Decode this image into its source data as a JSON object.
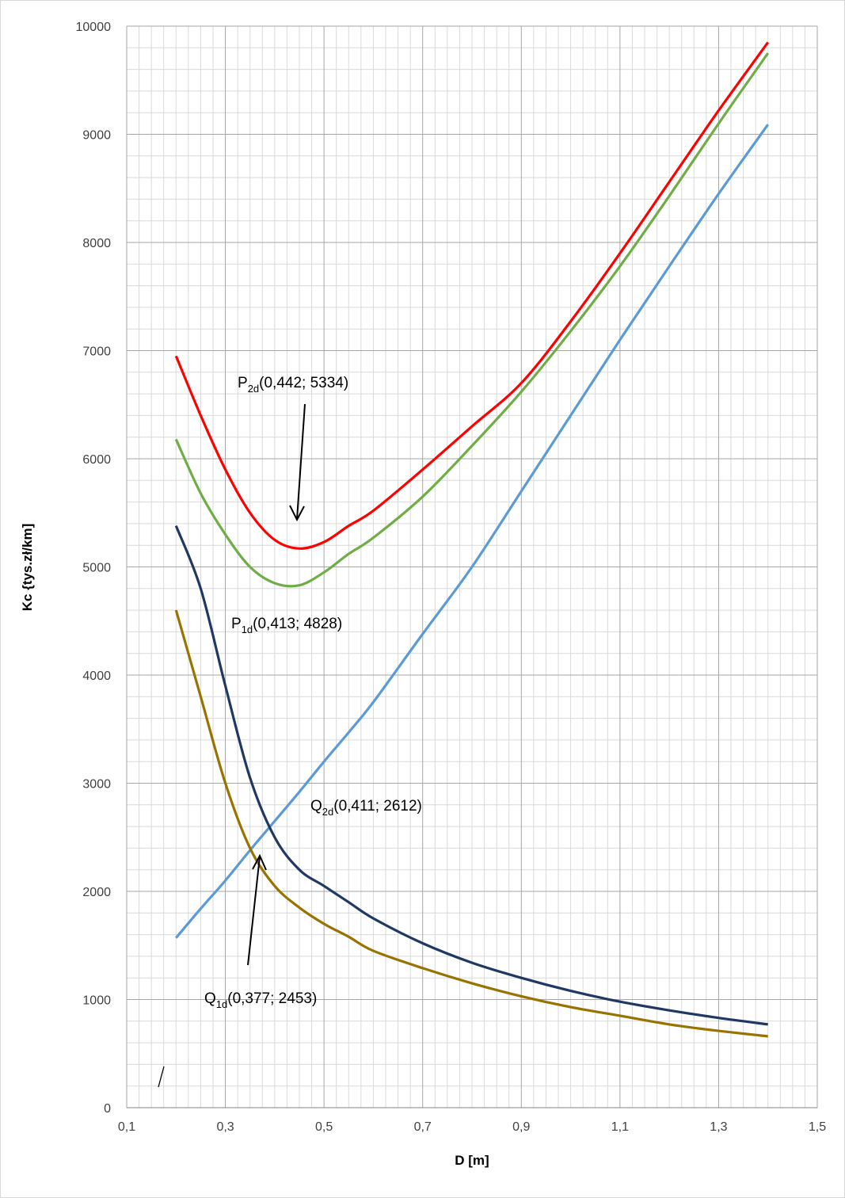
{
  "chart_data": {
    "type": "line",
    "x_label": "D [m]",
    "y_label": "Kc {tys.zł/km]",
    "x": [
      0.2,
      0.25,
      0.3,
      0.35,
      0.4,
      0.45,
      0.5,
      0.55,
      0.6,
      0.7,
      0.8,
      0.9,
      1.0,
      1.1,
      1.2,
      1.3,
      1.4
    ],
    "series": [
      {
        "color": "#ff0000",
        "values": [
          6950,
          6400,
          5900,
          5500,
          5250,
          5170,
          5230,
          5380,
          5520,
          5900,
          6300,
          6700,
          7270,
          7900,
          8560,
          9220,
          9850
        ]
      },
      {
        "color": "#70ad47",
        "values": [
          6180,
          5680,
          5300,
          5000,
          4850,
          4830,
          4950,
          5120,
          5270,
          5650,
          6120,
          6620,
          7180,
          7780,
          8430,
          9100,
          9750
        ]
      },
      {
        "color": "#5b9bd5",
        "values": [
          1570,
          1840,
          2100,
          2380,
          2650,
          2920,
          3200,
          3470,
          3750,
          4380,
          5000,
          5700,
          6400,
          7100,
          7780,
          8450,
          9090
        ]
      },
      {
        "color": "#203864",
        "values": [
          5380,
          4800,
          3900,
          3050,
          2500,
          2200,
          2050,
          1900,
          1750,
          1520,
          1340,
          1200,
          1080,
          980,
          900,
          830,
          770
        ]
      },
      {
        "color": "#997300",
        "values": [
          4600,
          3800,
          3000,
          2400,
          2050,
          1850,
          1700,
          1580,
          1450,
          1290,
          1150,
          1030,
          930,
          850,
          770,
          710,
          660
        ]
      }
    ],
    "xlim": [
      0.1,
      1.5
    ],
    "xticks": [
      {
        "value": 0.1,
        "label": "0,1"
      },
      {
        "value": 0.3,
        "label": "0,3"
      },
      {
        "value": 0.5,
        "label": "0,5"
      },
      {
        "value": 0.7,
        "label": "0,7"
      },
      {
        "value": 0.9,
        "label": "0,9"
      },
      {
        "value": 1.1,
        "label": "1,1"
      },
      {
        "value": 1.3,
        "label": "1,3"
      },
      {
        "value": 1.5,
        "label": "1,5"
      }
    ],
    "ylim": [
      0,
      10000
    ],
    "yticks": [
      0,
      1000,
      2000,
      3000,
      4000,
      5000,
      6000,
      7000,
      8000,
      9000,
      10000
    ],
    "grid": true,
    "minor_grid": true,
    "annotations": [
      {
        "base": "P",
        "sub": "2d",
        "rest": "(0,442; 5334)"
      },
      {
        "base": "P",
        "sub": "1d",
        "rest": "(0,413; 4828)"
      },
      {
        "base": "Q",
        "sub": "2d",
        "rest": "(0,411; 2612)"
      },
      {
        "base": "Q",
        "sub": "1d",
        "rest": "(0,377; 2453)"
      }
    ]
  }
}
